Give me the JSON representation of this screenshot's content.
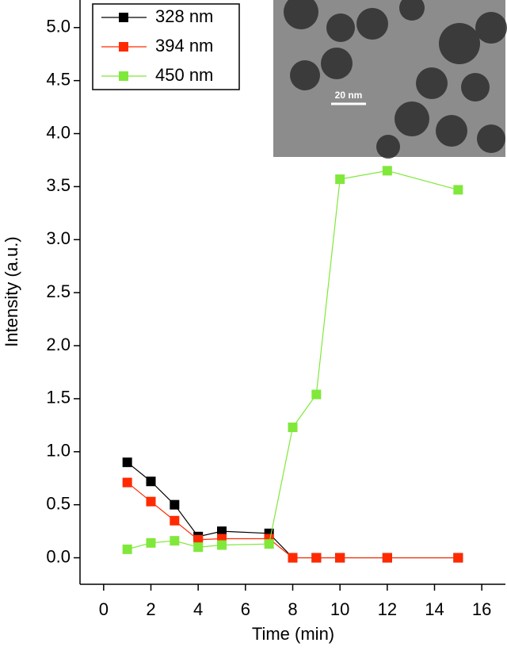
{
  "chart_data": {
    "type": "line",
    "x_label": "Time (min)",
    "y_label": "Intensity (a.u.)",
    "x": [
      1,
      2,
      3,
      4,
      5,
      7,
      8,
      9,
      10,
      12,
      15
    ],
    "series": [
      {
        "name": "328 nm",
        "color": "#000000",
        "values": [
          0.9,
          0.72,
          0.5,
          0.2,
          0.25,
          0.23,
          0,
          0,
          0,
          0,
          0
        ]
      },
      {
        "name": "394 nm",
        "color": "#ff2a00",
        "values": [
          0.71,
          0.53,
          0.35,
          0.17,
          0.18,
          0.18,
          0,
          0,
          0,
          0,
          0
        ]
      },
      {
        "name": "450 nm",
        "color": "#80e83a",
        "values": [
          0.08,
          0.14,
          0.16,
          0.1,
          0.12,
          0.13,
          1.23,
          1.54,
          3.57,
          3.65,
          3.47
        ]
      }
    ],
    "xlim": [
      -1,
      17
    ],
    "ylim": [
      -0.25,
      5.26
    ],
    "xticks": [
      0,
      2,
      4,
      6,
      8,
      10,
      12,
      14,
      16
    ],
    "yticks": [
      {
        "value": 0,
        "label": "0.0"
      },
      {
        "value": 0.5,
        "label": "0.5"
      },
      {
        "value": 1,
        "label": "1.0"
      },
      {
        "value": 1.5,
        "label": "1.5"
      },
      {
        "value": 2,
        "label": "2.0"
      },
      {
        "value": 2.5,
        "label": "2.5"
      },
      {
        "value": 3,
        "label": "3.0"
      },
      {
        "value": 3.5,
        "label": "3.5"
      },
      {
        "value": 4,
        "label": "4.0"
      },
      {
        "value": 4.5,
        "label": "4.5"
      },
      {
        "value": 5,
        "label": "5.0"
      }
    ],
    "legend": "top-left",
    "inset_label": "20 nm"
  }
}
